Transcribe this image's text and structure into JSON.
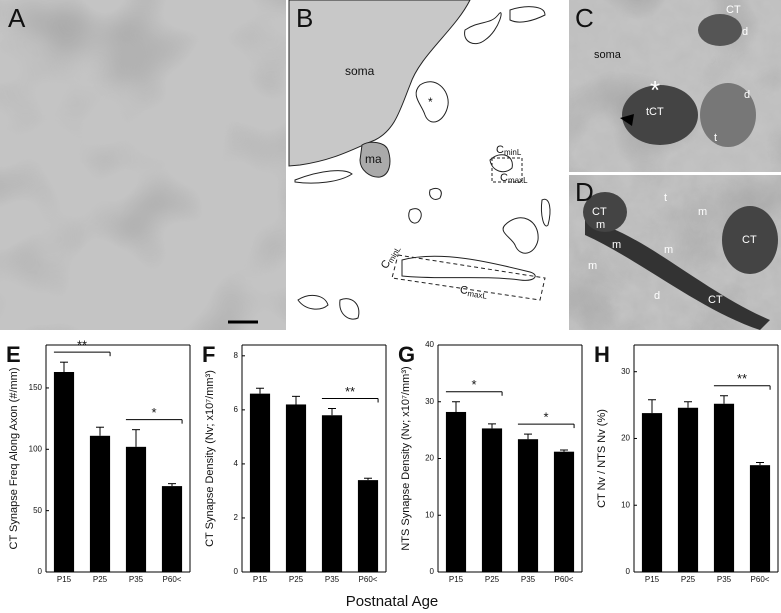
{
  "micrographs": [
    {
      "label": "A"
    },
    {
      "label": "B",
      "texts": [
        "soma",
        "ma",
        "*"
      ],
      "callouts": [
        {
          "base": "C",
          "sub": "minL"
        },
        {
          "base": "C",
          "sub": "maxL"
        },
        {
          "base": "C",
          "sub": "minL"
        },
        {
          "base": "C",
          "sub": "maxL"
        }
      ]
    },
    {
      "label": "C",
      "texts": [
        "CT",
        "d",
        "soma",
        "*",
        "tCT",
        "d",
        "t"
      ]
    },
    {
      "label": "D",
      "texts": [
        "CT",
        "t",
        "m",
        "CT",
        "m",
        "m",
        "m",
        "d",
        "CT",
        "m"
      ]
    }
  ],
  "x_label": "Postnatal Age",
  "chart_data": [
    {
      "type": "bar",
      "panel": "E",
      "ylabel": "CT Synapse Freq Along Axon (#/mm)",
      "categories": [
        "P15",
        "P25",
        "P35",
        "P60<"
      ],
      "values": [
        163,
        111,
        102,
        70
      ],
      "errors": [
        8,
        7,
        14,
        2
      ],
      "color": "#000000",
      "ylim": [
        0,
        185
      ],
      "yticks": [
        0,
        50,
        100,
        150
      ],
      "annotations": [
        {
          "text": "**",
          "between": [
            "P15",
            "P25"
          ]
        },
        {
          "text": "*",
          "between": [
            "P35",
            "P60<"
          ]
        }
      ]
    },
    {
      "type": "bar",
      "panel": "F",
      "ylabel": "CT  Synapse Density (Nv; x10⁷/mm³)",
      "categories": [
        "P15",
        "P25",
        "P35",
        "P60<"
      ],
      "values": [
        6.6,
        6.2,
        5.8,
        3.4
      ],
      "errors": [
        0.2,
        0.3,
        0.25,
        0.07
      ],
      "color": "#000000",
      "ylim": [
        0,
        8.4
      ],
      "yticks": [
        0,
        2,
        4,
        6,
        8
      ],
      "annotations": [
        {
          "text": "**",
          "between": [
            "P35",
            "P60<"
          ]
        }
      ]
    },
    {
      "type": "bar",
      "panel": "G",
      "ylabel": "NTS Synapse Density (Nv; x10⁷/mm³)",
      "categories": [
        "P15",
        "P25",
        "P35",
        "P60<"
      ],
      "values": [
        28.2,
        25.3,
        23.4,
        21.2
      ],
      "errors": [
        1.8,
        0.8,
        0.9,
        0.3
      ],
      "color": "#000000",
      "ylim": [
        0,
        40
      ],
      "yticks": [
        0,
        10,
        20,
        30,
        40
      ],
      "annotations": [
        {
          "text": "*",
          "between": [
            "P15",
            "P25"
          ]
        },
        {
          "text": "*",
          "between": [
            "P35",
            "P60<"
          ]
        }
      ]
    },
    {
      "type": "bar",
      "panel": "H",
      "ylabel": "CT Nv / NTS Nv (%)",
      "categories": [
        "P15",
        "P25",
        "P35",
        "P60<"
      ],
      "values": [
        23.8,
        24.6,
        25.2,
        16.0
      ],
      "errors": [
        2.0,
        0.9,
        1.2,
        0.4
      ],
      "color": "#000000",
      "ylim": [
        0,
        34
      ],
      "yticks": [
        0,
        10,
        20,
        30
      ],
      "annotations": [
        {
          "text": "**",
          "between": [
            "P35",
            "P60<"
          ]
        }
      ]
    }
  ]
}
